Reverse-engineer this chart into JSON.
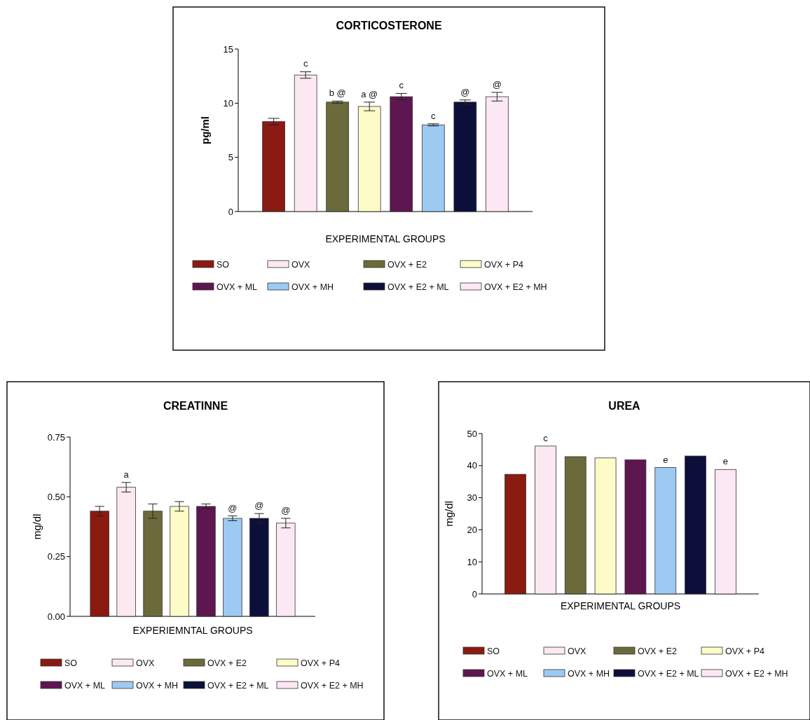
{
  "chart_data": [
    {
      "type": "bar",
      "title": "CORTICOSTERONE",
      "xlabel": "EXPERIMENTAL GROUPS",
      "ylabel": "pg/ml",
      "categories": [
        null
      ],
      "ylim": [
        0,
        15
      ],
      "yticks": [
        0,
        5,
        10,
        15
      ],
      "legend": "bottom",
      "series": [
        {
          "name": "SO",
          "color": "#8b1a10",
          "values": [
            8.3
          ],
          "errors": [
            0.3
          ]
        },
        {
          "name": "OVX",
          "color": "#fce8f0",
          "values": [
            12.6
          ],
          "errors": [
            0.3
          ],
          "value_labels": [
            "c"
          ]
        },
        {
          "name": "OVX + E2",
          "color": "#6b6a3a",
          "values": [
            10.1
          ],
          "errors": [
            0.1
          ],
          "value_labels": [
            "b @"
          ]
        },
        {
          "name": "OVX + P4",
          "color": "#fdfcc8",
          "values": [
            9.7
          ],
          "errors": [
            0.4
          ],
          "value_labels": [
            "a @"
          ]
        },
        {
          "name": "OVX + ML",
          "color": "#5e1650",
          "values": [
            10.6
          ],
          "errors": [
            0.3
          ],
          "value_labels": [
            "c"
          ]
        },
        {
          "name": "OVX + MH",
          "color": "#9dcaf2",
          "values": [
            8.0
          ],
          "errors": [
            0.1
          ],
          "value_labels": [
            "c"
          ]
        },
        {
          "name": "OVX + E2 + ML",
          "color": "#0c0f3a",
          "values": [
            10.1
          ],
          "errors": [
            0.2
          ],
          "value_labels": [
            "@"
          ]
        },
        {
          "name": "OVX + E2 + MH",
          "color": "#fce8f4",
          "values": [
            10.6
          ],
          "errors": [
            0.4
          ],
          "value_labels": [
            "@"
          ]
        }
      ]
    },
    {
      "type": "bar",
      "title": "CREATINNE",
      "xlabel": "EXPERIEMNTAL GROUPS",
      "ylabel": "mg/dl",
      "categories": [
        null
      ],
      "ylim": [
        0,
        0.75
      ],
      "yticks": [
        {
          "value": 0,
          "label": "0.00"
        },
        0.25,
        {
          "value": 0.5,
          "label": "0.50"
        },
        0.75
      ],
      "legend": "bottom",
      "series": [
        {
          "name": "SO",
          "color": "#8b1a10",
          "values": [
            0.44
          ],
          "errors": [
            0.02
          ]
        },
        {
          "name": "OVX",
          "color": "#fce8f0",
          "values": [
            0.54
          ],
          "errors": [
            0.02
          ],
          "value_labels": [
            "a"
          ]
        },
        {
          "name": "OVX + E2",
          "color": "#6b6a3a",
          "values": [
            0.44
          ],
          "errors": [
            0.03
          ]
        },
        {
          "name": "OVX + P4",
          "color": "#fdfcc8",
          "values": [
            0.46
          ],
          "errors": [
            0.02
          ]
        },
        {
          "name": "OVX + ML",
          "color": "#5e1650",
          "values": [
            0.46
          ],
          "errors": [
            0.01
          ]
        },
        {
          "name": "OVX + MH",
          "color": "#9dcaf2",
          "values": [
            0.41
          ],
          "errors": [
            0.01
          ],
          "value_labels": [
            "@"
          ]
        },
        {
          "name": "OVX + E2 + ML",
          "color": "#0c0f3a",
          "values": [
            0.41
          ],
          "errors": [
            0.02
          ],
          "value_labels": [
            "@"
          ]
        },
        {
          "name": "OVX + E2 + MH",
          "color": "#fce8f4",
          "values": [
            0.39
          ],
          "errors": [
            0.02
          ],
          "value_labels": [
            "@"
          ]
        }
      ]
    },
    {
      "type": "bar",
      "title": "UREA",
      "xlabel": "EXPERIMENTAL GROUPS",
      "ylabel": "mg/dl",
      "categories": [
        null
      ],
      "ylim": [
        0,
        50
      ],
      "yticks": [
        0,
        10,
        20,
        30,
        40,
        50
      ],
      "legend": "bottom",
      "series": [
        {
          "name": "SO",
          "color": "#8b1a10",
          "values": [
            37.3
          ]
        },
        {
          "name": "OVX",
          "color": "#fce8f0",
          "values": [
            46.1
          ],
          "value_labels": [
            "c"
          ]
        },
        {
          "name": "OVX + E2",
          "color": "#6b6a3a",
          "values": [
            42.8
          ]
        },
        {
          "name": "OVX + P4",
          "color": "#fdfcc8",
          "values": [
            42.4
          ]
        },
        {
          "name": "OVX + ML",
          "color": "#5e1650",
          "values": [
            41.8
          ]
        },
        {
          "name": "OVX + MH",
          "color": "#9dcaf2",
          "values": [
            39.4
          ],
          "value_labels": [
            "e"
          ]
        },
        {
          "name": "OVX + E2 + ML",
          "color": "#0c0f3a",
          "values": [
            43.0
          ]
        },
        {
          "name": "OVX + E2 + MH",
          "color": "#fce8f4",
          "values": [
            38.8
          ],
          "value_labels": [
            "e"
          ]
        }
      ]
    }
  ]
}
